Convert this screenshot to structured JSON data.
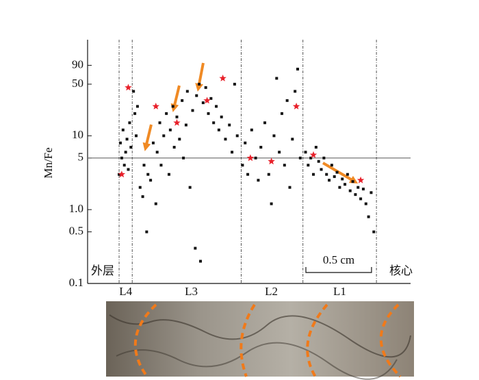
{
  "chart_data": {
    "type": "scatter",
    "y_label": "Mn/Fe",
    "log_y": true,
    "xlim": [
      0,
      2.46
    ],
    "ylim": [
      0.1,
      200
    ],
    "yticks": [
      0.1,
      0.5,
      {
        "value": 1,
        "label": "1.0"
      },
      5,
      10,
      50,
      90
    ],
    "reference_line": 5,
    "zone_boundaries": [
      0.24,
      0.34,
      1.17,
      1.64,
      2.2
    ],
    "zones": [
      {
        "label": "L4",
        "x": 0.29
      },
      {
        "label": "L3",
        "x": 0.79
      },
      {
        "label": "L2",
        "x": 1.4
      },
      {
        "label": "L1",
        "x": 1.92
      }
    ],
    "side_labels": {
      "outer": "外层",
      "core": "核心"
    },
    "scale_bar": {
      "label": "0.5 cm",
      "length": 0.5
    },
    "series": [
      {
        "name": "points",
        "color": "#111111",
        "marker": "square",
        "x": [
          0.24,
          0.25,
          0.26,
          0.27,
          0.28,
          0.29,
          0.3,
          0.31,
          0.32,
          0.33,
          0.35,
          0.36,
          0.37,
          0.38,
          0.4,
          0.42,
          0.43,
          0.45,
          0.46,
          0.48,
          0.5,
          0.52,
          0.53,
          0.55,
          0.56,
          0.58,
          0.6,
          0.62,
          0.63,
          0.65,
          0.66,
          0.68,
          0.7,
          0.72,
          0.73,
          0.75,
          0.76,
          0.78,
          0.8,
          0.82,
          0.83,
          0.85,
          0.86,
          0.88,
          0.9,
          0.92,
          0.94,
          0.96,
          0.98,
          1.0,
          1.02,
          1.05,
          1.08,
          1.1,
          1.12,
          1.14,
          1.18,
          1.2,
          1.22,
          1.25,
          1.28,
          1.3,
          1.32,
          1.35,
          1.38,
          1.4,
          1.42,
          1.44,
          1.46,
          1.48,
          1.5,
          1.52,
          1.54,
          1.56,
          1.58,
          1.6,
          1.62,
          1.66,
          1.68,
          1.7,
          1.72,
          1.74,
          1.76,
          1.78,
          1.8,
          1.82,
          1.84,
          1.86,
          1.88,
          1.9,
          1.92,
          1.94,
          1.96,
          1.98,
          2.0,
          2.02,
          2.04,
          2.06,
          2.08,
          2.1,
          2.12,
          2.14,
          2.16,
          2.18
        ],
        "values": [
          3,
          8,
          5,
          12,
          4,
          6,
          9,
          3.5,
          15,
          7,
          40,
          20,
          10,
          25,
          2,
          1.5,
          4,
          0.5,
          3,
          2.5,
          8,
          1.2,
          6,
          15,
          4,
          10,
          20,
          3,
          12,
          25,
          7,
          18,
          9,
          30,
          5,
          14,
          40,
          2,
          22,
          0.3,
          35,
          50,
          0.2,
          28,
          45,
          20,
          32,
          15,
          25,
          12,
          18,
          9,
          14,
          6,
          50,
          10,
          4,
          8,
          3,
          12,
          5,
          2.5,
          7,
          15,
          3,
          1.2,
          10,
          60,
          6,
          20,
          4,
          30,
          2,
          9,
          40,
          80,
          5,
          6,
          4,
          5,
          3,
          7,
          4.5,
          3.5,
          5,
          3,
          2.5,
          4,
          2.8,
          3.2,
          2,
          2.6,
          2.2,
          3,
          1.8,
          2.4,
          1.6,
          2,
          1.4,
          1.9,
          1.2,
          0.8,
          1.7,
          0.5
        ]
      },
      {
        "name": "stars",
        "color": "#e8202a",
        "marker": "star",
        "x": [
          0.26,
          0.31,
          0.52,
          0.68,
          0.91,
          1.03,
          1.24,
          1.4,
          1.59,
          1.72,
          2.08
        ],
        "values": [
          3,
          45,
          25,
          15,
          30,
          60,
          5,
          4.5,
          25,
          5.5,
          2.5
        ]
      }
    ]
  }
}
